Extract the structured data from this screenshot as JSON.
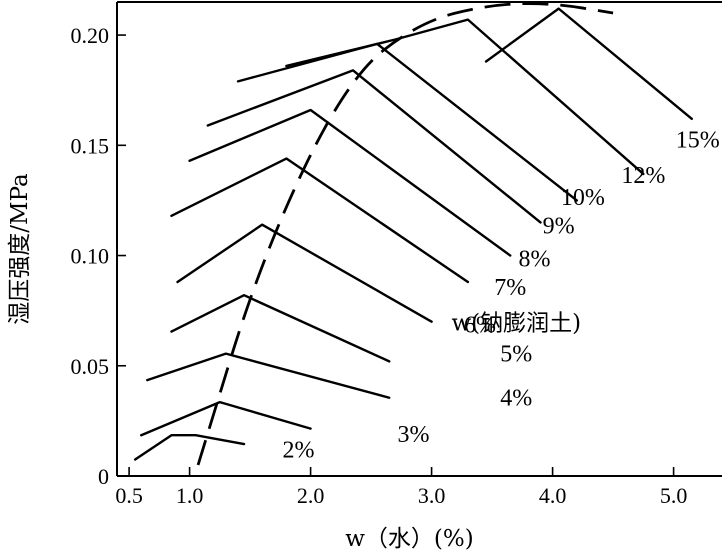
{
  "chart_data": {
    "type": "line",
    "xlabel": "w（水）(%)",
    "ylabel": "湿压强度/MPa",
    "annotation": "w(钠膨润土)",
    "xlim": [
      0.4,
      5.4
    ],
    "ylim": [
      0,
      0.215
    ],
    "x_ticks": [
      {
        "value": 0.5,
        "label": "0.5"
      },
      {
        "value": 1.0,
        "label": "1.0"
      },
      {
        "value": 2.0,
        "label": "2.0"
      },
      {
        "value": 3.0,
        "label": "3.0"
      },
      {
        "value": 4.0,
        "label": "4.0"
      },
      {
        "value": 5.0,
        "label": "5.0"
      }
    ],
    "y_ticks": [
      {
        "value": 0,
        "label": "0"
      },
      {
        "value": 0.05,
        "label": "0.05"
      },
      {
        "value": 0.1,
        "label": "0.10"
      },
      {
        "value": 0.15,
        "label": "0.15"
      },
      {
        "value": 0.2,
        "label": "0.20"
      }
    ],
    "series": [
      {
        "name": "2%",
        "points": [
          [
            0.55,
            0.0075
          ],
          [
            0.85,
            0.0185
          ],
          [
            1.05,
            0.0185
          ],
          [
            1.45,
            0.0145
          ]
        ]
      },
      {
        "name": "3%",
        "points": [
          [
            0.6,
            0.0185
          ],
          [
            1.25,
            0.0335
          ],
          [
            2.0,
            0.0215
          ]
        ]
      },
      {
        "name": "4%",
        "points": [
          [
            0.65,
            0.0435
          ],
          [
            1.3,
            0.0555
          ],
          [
            2.65,
            0.0355
          ]
        ]
      },
      {
        "name": "5%",
        "points": [
          [
            0.85,
            0.0655
          ],
          [
            1.45,
            0.082
          ],
          [
            2.65,
            0.052
          ]
        ]
      },
      {
        "name": "6%",
        "points": [
          [
            0.9,
            0.088
          ],
          [
            1.6,
            0.114
          ],
          [
            3.0,
            0.07
          ]
        ]
      },
      {
        "name": "7%",
        "points": [
          [
            0.85,
            0.118
          ],
          [
            1.8,
            0.144
          ],
          [
            3.3,
            0.088
          ]
        ]
      },
      {
        "name": "8%",
        "points": [
          [
            1.0,
            0.143
          ],
          [
            2.0,
            0.166
          ],
          [
            3.65,
            0.1
          ]
        ]
      },
      {
        "name": "9%",
        "points": [
          [
            1.15,
            0.159
          ],
          [
            2.35,
            0.184
          ],
          [
            3.9,
            0.115
          ]
        ]
      },
      {
        "name": "10%",
        "points": [
          [
            1.4,
            0.179
          ],
          [
            2.55,
            0.196
          ],
          [
            4.2,
            0.125
          ]
        ]
      },
      {
        "name": "12%",
        "points": [
          [
            1.8,
            0.186
          ],
          [
            2.7,
            0.198
          ],
          [
            3.3,
            0.207
          ],
          [
            4.75,
            0.137
          ]
        ]
      },
      {
        "name": "15%",
        "points": [
          [
            3.45,
            0.188
          ],
          [
            4.05,
            0.212
          ],
          [
            5.15,
            0.162
          ]
        ]
      }
    ],
    "labels": [
      {
        "text": "2%",
        "x": 1.9,
        "y": 0.0085
      },
      {
        "text": "3%",
        "x": 2.85,
        "y": 0.0155
      },
      {
        "text": "4%",
        "x": 3.7,
        "y": 0.032
      },
      {
        "text": "5%",
        "x": 3.7,
        "y": 0.052
      },
      {
        "text": "6%",
        "x": 3.4,
        "y": 0.065
      },
      {
        "text": "7%",
        "x": 3.65,
        "y": 0.082
      },
      {
        "text": "8%",
        "x": 3.85,
        "y": 0.095
      },
      {
        "text": "9%",
        "x": 4.05,
        "y": 0.11
      },
      {
        "text": "10%",
        "x": 4.25,
        "y": 0.123
      },
      {
        "text": "12%",
        "x": 4.75,
        "y": 0.133
      },
      {
        "text": "15%",
        "x": 5.2,
        "y": 0.149
      }
    ],
    "annotation_position": {
      "x": 3.7,
      "y": 0.066
    },
    "envelope": [
      [
        1.07,
        0.005
      ],
      [
        1.6,
        0.1
      ],
      [
        2.3,
        0.18
      ],
      [
        2.9,
        0.206
      ],
      [
        3.5,
        0.214
      ],
      [
        4.0,
        0.2145
      ],
      [
        4.5,
        0.21
      ]
    ]
  }
}
